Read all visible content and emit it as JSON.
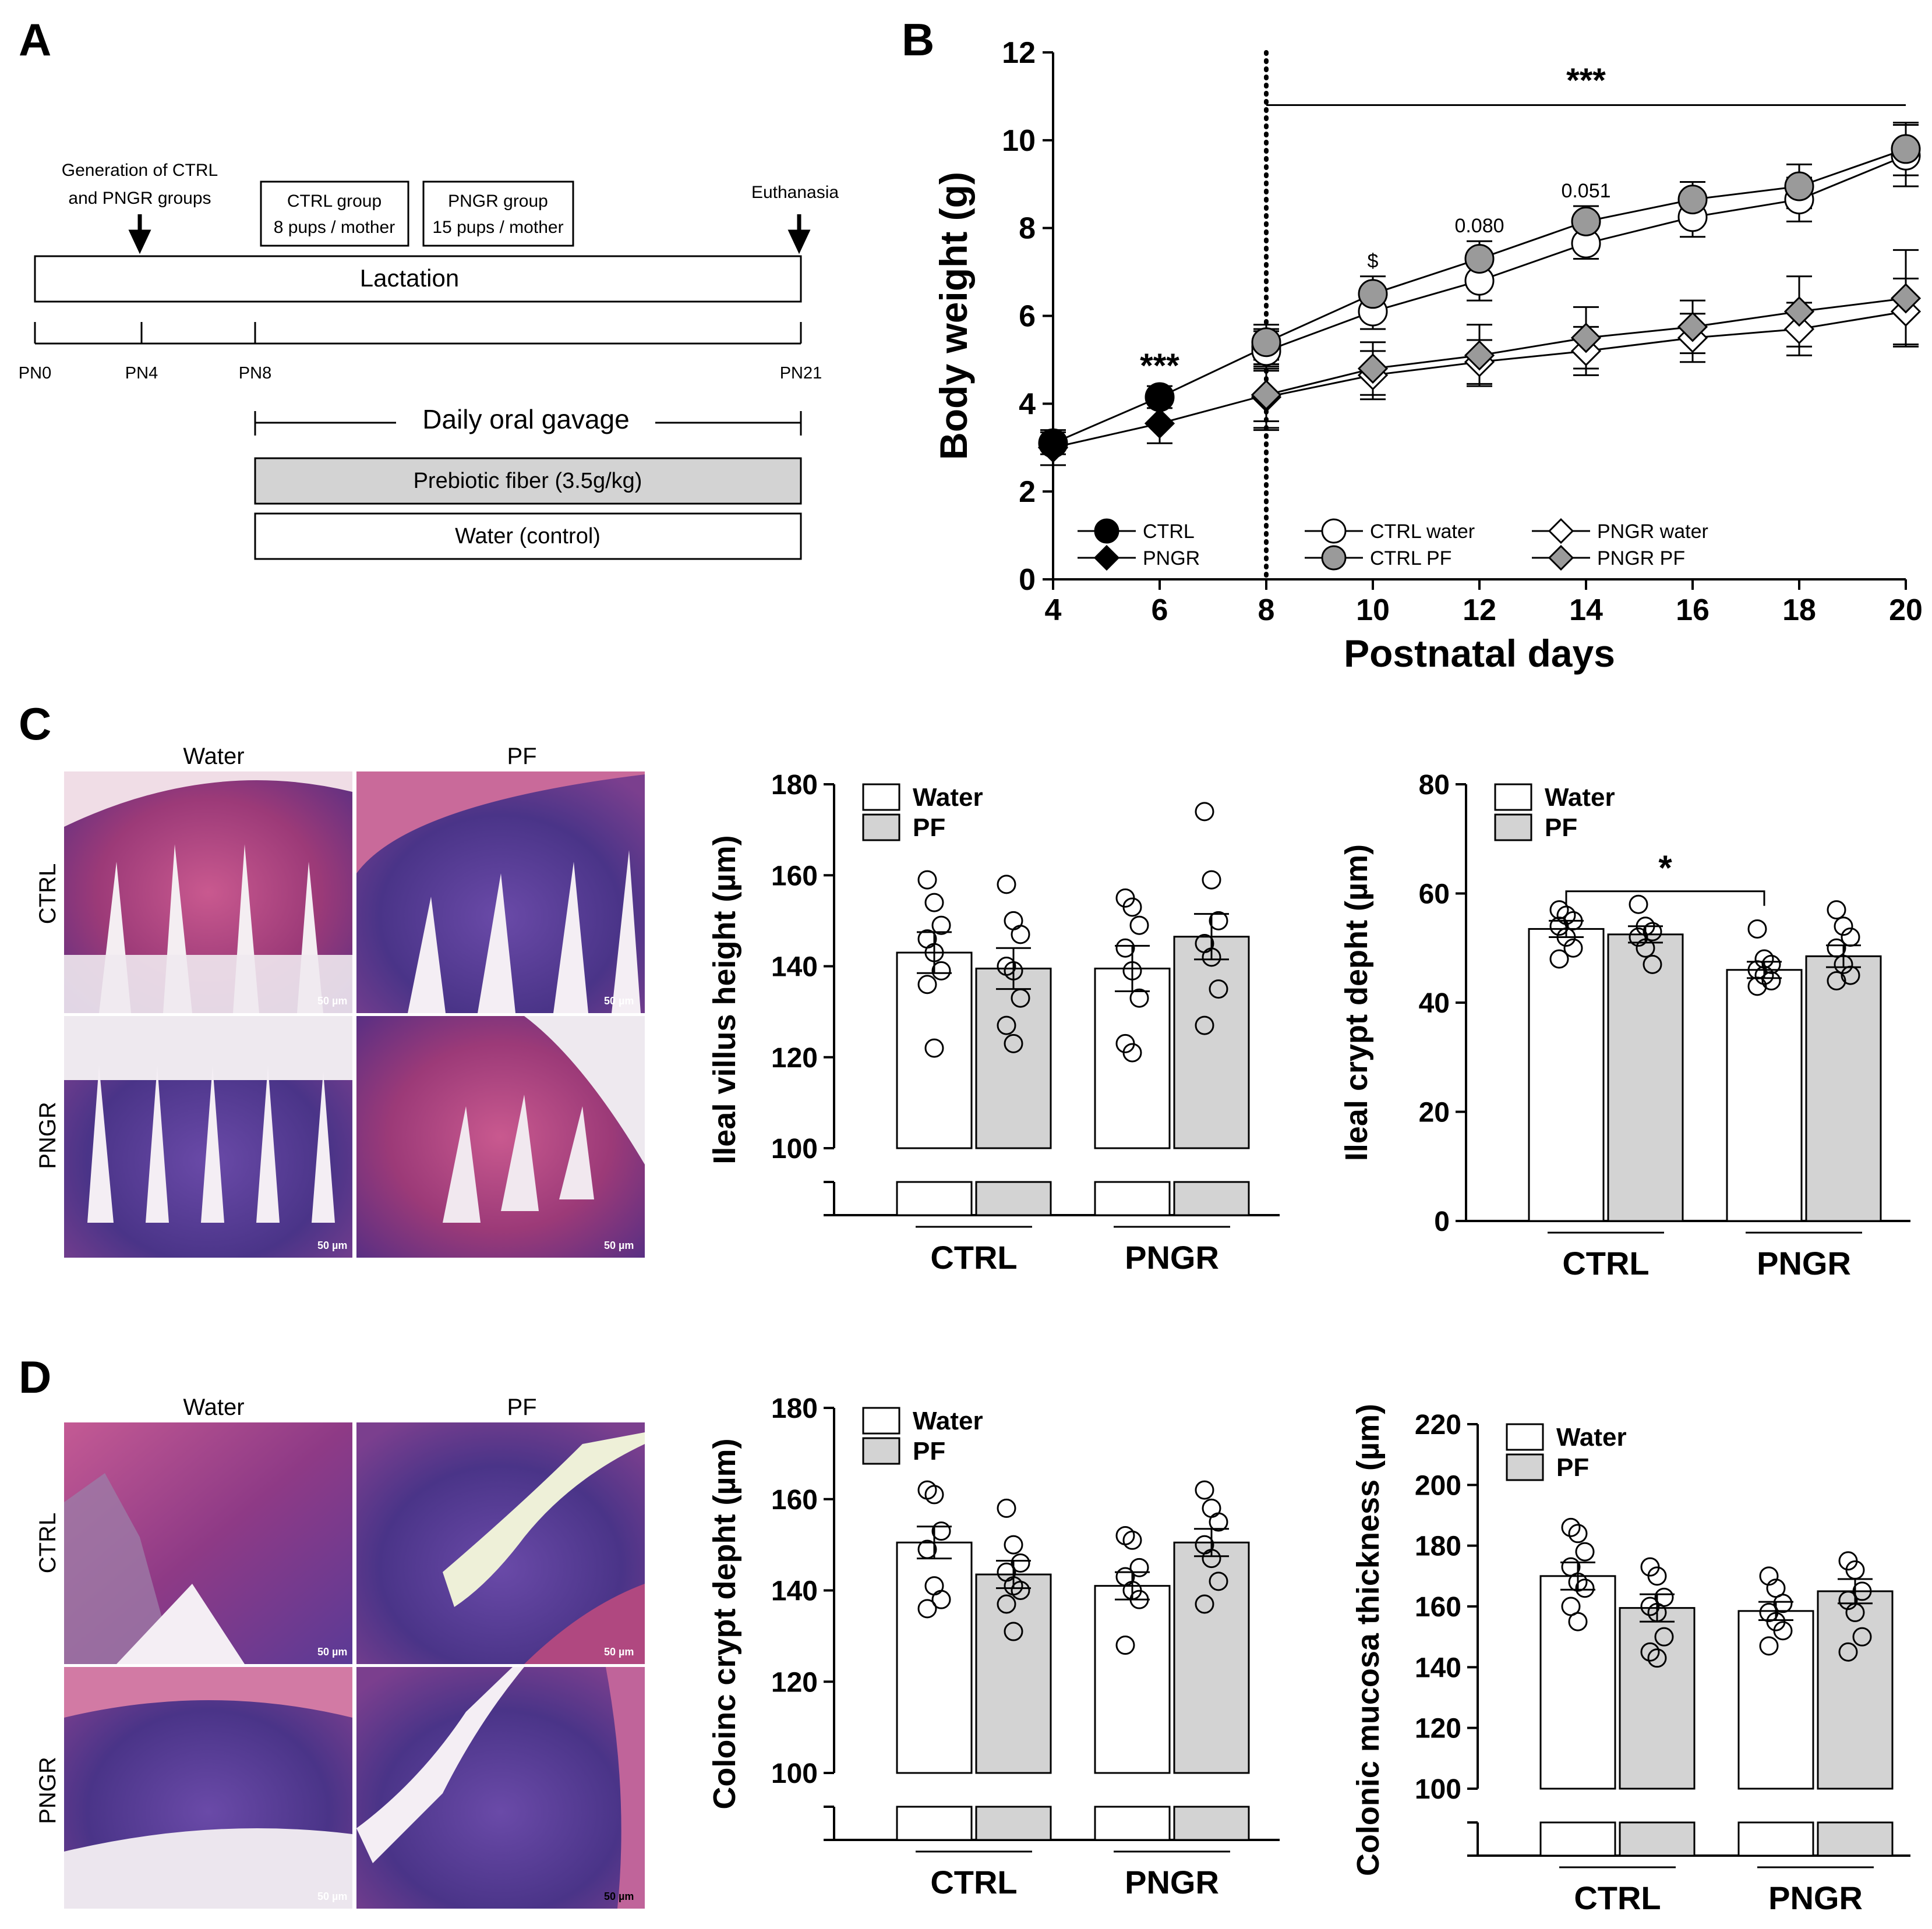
{
  "panel_labels": {
    "a": "A",
    "b": "B",
    "c": "C",
    "d": "D"
  },
  "timeline": {
    "generation_line1": "Generation of CTRL",
    "generation_line2": "and PNGR groups",
    "ctrl_group_line1": "CTRL group",
    "ctrl_group_line2": "8 pups / mother",
    "pngr_group_line1": "PNGR group",
    "pngr_group_line2": "15 pups / mother",
    "euthanasia": "Euthanasia",
    "lactation": "Lactation",
    "ticks": [
      "PN0",
      "PN4",
      "PN8",
      "PN21"
    ],
    "gavage": "Daily oral gavage",
    "prebiotic": "Prebiotic fiber (3.5g/kg)",
    "water": "Water (control)"
  },
  "histology": {
    "col_water": "Water",
    "col_pf": "PF",
    "row_ctrl": "CTRL",
    "row_pngr": "PNGR",
    "scale": "50 µm"
  },
  "colors": {
    "bar_pf": "#d3d3d3",
    "bar_water": "#ffffff",
    "stain_pink": "#b04880",
    "stain_purple": "#5a3c9a",
    "marker_gray": "#9a9a9a"
  },
  "chart_data": [
    {
      "id": "B",
      "type": "line",
      "xlabel": "Postnatal days",
      "ylabel": "Body weight (g)",
      "xlim": [
        4,
        20
      ],
      "ylim": [
        0,
        12
      ],
      "xticks": [
        4,
        6,
        8,
        10,
        12,
        14,
        16,
        18,
        20
      ],
      "yticks": [
        0,
        2,
        4,
        6,
        8,
        10,
        12
      ],
      "vline_at": 8,
      "series": [
        {
          "name": "CTRL",
          "marker": "circle",
          "fill": "black",
          "x": [
            4,
            6,
            8
          ],
          "y": [
            3.1,
            4.15,
            5.3
          ],
          "err": [
            0.25,
            0.25,
            0.4
          ]
        },
        {
          "name": "PNGR",
          "marker": "diamond",
          "fill": "black",
          "x": [
            4,
            6,
            8
          ],
          "y": [
            3.0,
            3.55,
            4.2
          ],
          "err": [
            0.4,
            0.45,
            0.8
          ]
        },
        {
          "name": "CTRL water",
          "marker": "circle",
          "fill": "white",
          "x": [
            8,
            10,
            12,
            14,
            16,
            18,
            20
          ],
          "y": [
            5.2,
            6.1,
            6.8,
            7.65,
            8.25,
            8.65,
            9.65
          ],
          "err": [
            0.45,
            0.4,
            0.45,
            0.35,
            0.45,
            0.5,
            0.7
          ]
        },
        {
          "name": "CTRL PF",
          "marker": "circle",
          "fill": "gray",
          "x": [
            8,
            10,
            12,
            14,
            16,
            18,
            20
          ],
          "y": [
            5.4,
            6.5,
            7.3,
            8.15,
            8.65,
            8.95,
            9.8
          ],
          "err": [
            0.4,
            0.4,
            0.4,
            0.35,
            0.4,
            0.5,
            0.6
          ]
        },
        {
          "name": "PNGR water",
          "marker": "diamond",
          "fill": "white",
          "x": [
            8,
            10,
            12,
            14,
            16,
            18,
            20
          ],
          "y": [
            4.15,
            4.65,
            4.95,
            5.2,
            5.5,
            5.7,
            6.1
          ],
          "err": [
            0.7,
            0.55,
            0.5,
            0.55,
            0.55,
            0.6,
            0.75
          ]
        },
        {
          "name": "PNGR PF",
          "marker": "diamond",
          "fill": "gray",
          "x": [
            8,
            10,
            12,
            14,
            16,
            18,
            20
          ],
          "y": [
            4.2,
            4.8,
            5.1,
            5.5,
            5.75,
            6.1,
            6.4
          ],
          "err": [
            0.6,
            0.6,
            0.7,
            0.7,
            0.6,
            0.8,
            1.1
          ]
        }
      ],
      "annotations": [
        {
          "text": "***",
          "x": 6,
          "y": 4.6
        },
        {
          "text": "$",
          "x": 10,
          "y": 7.1
        },
        {
          "text": "0.080",
          "x": 12,
          "y": 7.9
        },
        {
          "text": "0.051",
          "x": 14,
          "y": 8.7
        },
        {
          "text": "***",
          "x": 14,
          "y": 11.1
        }
      ],
      "legend": [
        "CTRL",
        "PNGR",
        "CTRL water",
        "CTRL PF",
        "PNGR water",
        "PNGR PF"
      ]
    },
    {
      "id": "C-villus",
      "type": "bar",
      "ylabel": "Ileal villus height (µm)",
      "ylim": [
        100,
        180
      ],
      "yticks": [
        100,
        120,
        140,
        160,
        180
      ],
      "categories": [
        "CTRL",
        "PNGR"
      ],
      "legend": [
        "Water",
        "PF"
      ],
      "series": [
        {
          "name": "Water",
          "values": [
            143,
            139.5
          ],
          "sem": [
            4.5,
            5
          ],
          "points": [
            [
              159,
              154,
              149,
              146,
              143,
              139,
              136,
              122
            ],
            [
              155,
              153,
              149,
              144,
              139,
              133,
              123,
              121
            ]
          ]
        },
        {
          "name": "PF",
          "values": [
            139.5,
            146.5
          ],
          "sem": [
            4.5,
            5
          ],
          "points": [
            [
              158,
              150,
              147,
              140,
              139,
              133,
              127,
              123
            ],
            [
              174,
              159,
              150,
              145,
              142,
              135,
              127
            ]
          ]
        }
      ],
      "significance": []
    },
    {
      "id": "C-crypt",
      "type": "bar",
      "ylabel": "Ileal crypt depht (µm)",
      "ylim": [
        0,
        80
      ],
      "yticks": [
        0,
        20,
        40,
        60,
        80
      ],
      "categories": [
        "CTRL",
        "PNGR"
      ],
      "legend": [
        "Water",
        "PF"
      ],
      "series": [
        {
          "name": "Water",
          "values": [
            53.5,
            46
          ],
          "sem": [
            1.5,
            1.5
          ],
          "points": [
            [
              57,
              56,
              55,
              54,
              52,
              50,
              48
            ],
            [
              53.5,
              48,
              47,
              46,
              45,
              44,
              43
            ]
          ]
        },
        {
          "name": "PF",
          "values": [
            52.5,
            48.5
          ],
          "sem": [
            1.5,
            2
          ],
          "points": [
            [
              58,
              54,
              53,
              52,
              50,
              47
            ],
            [
              57,
              54,
              52,
              50,
              47,
              45,
              44
            ]
          ]
        }
      ],
      "significance": [
        {
          "text": "*",
          "from": "CTRL Water",
          "to": "PNGR Water"
        }
      ]
    },
    {
      "id": "D-crypt",
      "type": "bar",
      "ylabel": "Coloinc crypt depht (µm)",
      "ylim": [
        100,
        180
      ],
      "yticks": [
        100,
        120,
        140,
        160,
        180
      ],
      "categories": [
        "CTRL",
        "PNGR"
      ],
      "legend": [
        "Water",
        "PF"
      ],
      "series": [
        {
          "name": "Water",
          "values": [
            150.5,
            141
          ],
          "sem": [
            3.5,
            3
          ],
          "points": [
            [
              162,
              161,
              153,
              149,
              141,
              138,
              136
            ],
            [
              152,
              151,
              145,
              143,
              140,
              138,
              128
            ]
          ]
        },
        {
          "name": "PF",
          "values": [
            143.5,
            150.5
          ],
          "sem": [
            3,
            3
          ],
          "points": [
            [
              158,
              150,
              146,
              144,
              141,
              140,
              137,
              131
            ],
            [
              162,
              158,
              155,
              150,
              147,
              142,
              137
            ]
          ]
        }
      ],
      "significance": []
    },
    {
      "id": "D-mucosa",
      "type": "bar",
      "ylabel": "Colonic mucosa thickness (µm)",
      "ylim": [
        100,
        220
      ],
      "yticks": [
        100,
        120,
        140,
        160,
        180,
        200,
        220
      ],
      "categories": [
        "CTRL",
        "PNGR"
      ],
      "legend": [
        "Water",
        "PF"
      ],
      "series": [
        {
          "name": "Water",
          "values": [
            170,
            158.5
          ],
          "sem": [
            4.5,
            3
          ],
          "points": [
            [
              186,
              184,
              178,
              173,
              168,
              166,
              160,
              155
            ],
            [
              170,
              166,
              161,
              158,
              155,
              152,
              147
            ]
          ]
        },
        {
          "name": "PF",
          "values": [
            159.5,
            165
          ],
          "sem": [
            4.5,
            4
          ],
          "points": [
            [
              173,
              170,
              163,
              160,
              158,
              150,
              145,
              143
            ],
            [
              175,
              172,
              165,
              162,
              158,
              150,
              145
            ]
          ]
        }
      ],
      "significance": []
    }
  ]
}
